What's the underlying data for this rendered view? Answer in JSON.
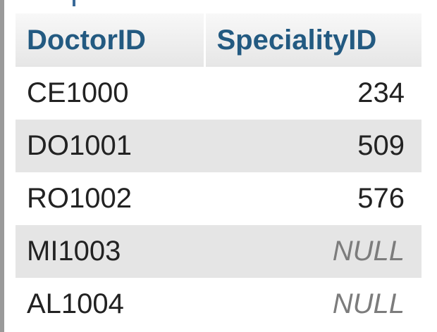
{
  "table": {
    "columns": [
      "DoctorID",
      "SpecialityID"
    ],
    "rows": [
      {
        "doctor_id": "CE1000",
        "speciality_id": "234"
      },
      {
        "doctor_id": "DO1001",
        "speciality_id": "509"
      },
      {
        "doctor_id": "RO1002",
        "speciality_id": "576"
      },
      {
        "doctor_id": "MI1003",
        "speciality_id": "NULL"
      },
      {
        "doctor_id": "AL1004",
        "speciality_id": "NULL"
      }
    ]
  },
  "colors": {
    "header_text": "#235a81",
    "row_alt_bg": "#e5e5e5",
    "null_text": "#7c7c7c"
  }
}
